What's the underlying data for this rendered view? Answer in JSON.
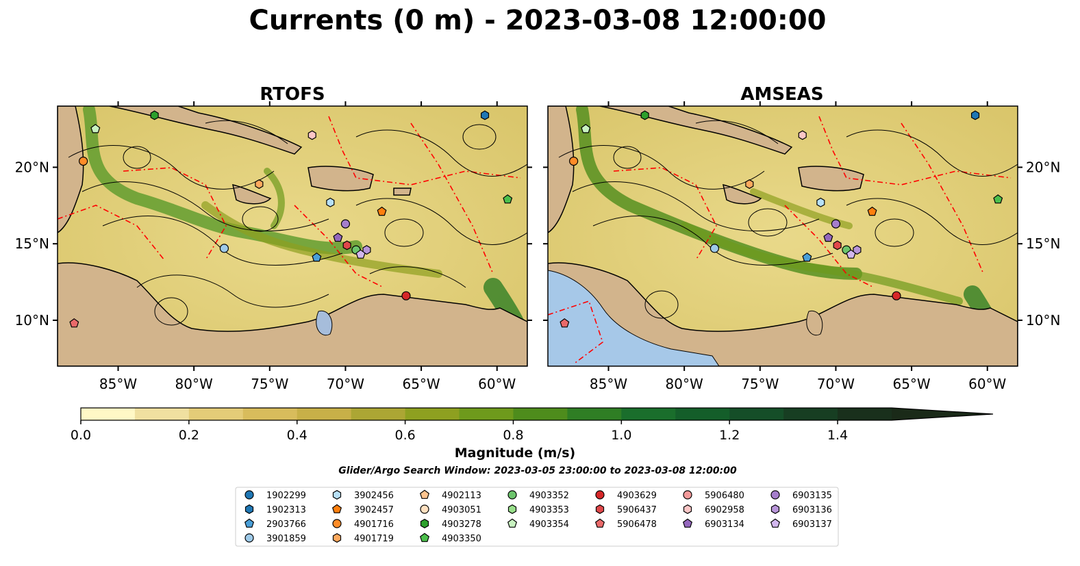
{
  "figure": {
    "title": "Currents (0 m) - 2023-03-08 12:00:00",
    "search_window": "Glider/Argo Search Window: 2023-03-05 23:00:00 to 2023-03-08 12:00:00"
  },
  "colors": {
    "land": "#d2b48c",
    "lakes": "#a6bddb",
    "pacific_nodata": "#a6c8e8",
    "eez_lines": "#ff0000",
    "streamlines": "#000000"
  },
  "chart_data": [
    {
      "type": "map",
      "title": "RTOFS",
      "xlabel": "",
      "ylabel": "",
      "xlim": [
        -89,
        -58
      ],
      "ylim": [
        7,
        24
      ],
      "x_ticks": [
        -85,
        -80,
        -75,
        -70,
        -65,
        -60
      ],
      "x_tick_labels": [
        "85°W",
        "80°W",
        "75°W",
        "70°W",
        "65°W",
        "60°W"
      ],
      "y_ticks": [
        10,
        15,
        20
      ],
      "y_tick_labels": [
        "10°N",
        "15°N",
        "20°N"
      ],
      "y_tick_side": "left",
      "pacific_shown_as": "land",
      "platforms": [
        {
          "id": "1902313",
          "lon": -60.8,
          "lat": 23.4
        },
        {
          "id": "4903278",
          "lon": -82.6,
          "lat": 23.4
        },
        {
          "id": "4903354",
          "lon": -86.5,
          "lat": 22.5
        },
        {
          "id": "6902958",
          "lon": -72.2,
          "lat": 22.1
        },
        {
          "id": "4901716",
          "lon": -87.3,
          "lat": 20.4
        },
        {
          "id": "4901719",
          "lon": -75.7,
          "lat": 18.9
        },
        {
          "id": "3902456",
          "lon": -71.0,
          "lat": 17.7
        },
        {
          "id": "4903350",
          "lon": -59.3,
          "lat": 17.9
        },
        {
          "id": "3902457",
          "lon": -67.6,
          "lat": 17.1
        },
        {
          "id": "6903135",
          "lon": -70.0,
          "lat": 16.3
        },
        {
          "id": "6903134",
          "lon": -70.5,
          "lat": 15.4
        },
        {
          "id": "3901859",
          "lon": -78.0,
          "lat": 14.7
        },
        {
          "id": "5906437",
          "lon": -69.9,
          "lat": 14.9
        },
        {
          "id": "4903352",
          "lon": -69.3,
          "lat": 14.6
        },
        {
          "id": "6903136",
          "lon": -68.6,
          "lat": 14.6
        },
        {
          "id": "6903137",
          "lon": -69.0,
          "lat": 14.3
        },
        {
          "id": "2903766",
          "lon": -71.9,
          "lat": 14.1
        },
        {
          "id": "4903629",
          "lon": -66.0,
          "lat": 11.6
        },
        {
          "id": "5906478",
          "lon": -87.9,
          "lat": 9.8
        }
      ]
    },
    {
      "type": "map",
      "title": "AMSEAS",
      "xlabel": "",
      "ylabel": "",
      "xlim": [
        -89,
        -58
      ],
      "ylim": [
        7,
        24
      ],
      "x_ticks": [
        -85,
        -80,
        -75,
        -70,
        -65,
        -60
      ],
      "x_tick_labels": [
        "85°W",
        "80°W",
        "75°W",
        "70°W",
        "65°W",
        "60°W"
      ],
      "y_ticks": [
        10,
        15,
        20
      ],
      "y_tick_labels": [
        "10°N",
        "15°N",
        "20°N"
      ],
      "y_tick_side": "right",
      "pacific_shown_as": "no data",
      "platforms": [
        {
          "id": "1902313",
          "lon": -60.8,
          "lat": 23.4
        },
        {
          "id": "4903278",
          "lon": -82.6,
          "lat": 23.4
        },
        {
          "id": "4903354",
          "lon": -86.5,
          "lat": 22.5
        },
        {
          "id": "6902958",
          "lon": -72.2,
          "lat": 22.1
        },
        {
          "id": "4901716",
          "lon": -87.3,
          "lat": 20.4
        },
        {
          "id": "4901719",
          "lon": -75.7,
          "lat": 18.9
        },
        {
          "id": "3902456",
          "lon": -71.0,
          "lat": 17.7
        },
        {
          "id": "4903350",
          "lon": -59.3,
          "lat": 17.9
        },
        {
          "id": "3902457",
          "lon": -67.6,
          "lat": 17.1
        },
        {
          "id": "6903135",
          "lon": -70.0,
          "lat": 16.3
        },
        {
          "id": "6903134",
          "lon": -70.5,
          "lat": 15.4
        },
        {
          "id": "3901859",
          "lon": -78.0,
          "lat": 14.7
        },
        {
          "id": "5906437",
          "lon": -69.9,
          "lat": 14.9
        },
        {
          "id": "4903352",
          "lon": -69.3,
          "lat": 14.6
        },
        {
          "id": "6903136",
          "lon": -68.6,
          "lat": 14.6
        },
        {
          "id": "6903137",
          "lon": -69.0,
          "lat": 14.3
        },
        {
          "id": "2903766",
          "lon": -71.9,
          "lat": 14.1
        },
        {
          "id": "4903629",
          "lon": -66.0,
          "lat": 11.6
        },
        {
          "id": "5906478",
          "lon": -87.9,
          "lat": 9.8
        }
      ]
    }
  ],
  "colorbar": {
    "label": "Magnitude (m/s)",
    "vmin": 0.0,
    "vmax": 1.5,
    "extend": "max",
    "ticks": [
      0.0,
      0.2,
      0.4,
      0.6,
      0.8,
      1.0,
      1.2,
      1.4
    ],
    "tick_labels": [
      "0.0",
      "0.2",
      "0.4",
      "0.6",
      "0.8",
      "1.0",
      "1.2",
      "1.4"
    ],
    "levels": [
      0.0,
      0.1,
      0.2,
      0.3,
      0.4,
      0.5,
      0.6,
      0.7,
      0.8,
      0.9,
      1.0,
      1.1,
      1.2,
      1.3,
      1.4,
      1.5
    ],
    "colors": [
      "#fff8c6",
      "#f0e0a0",
      "#e4cc78",
      "#d8bc5c",
      "#c8b048",
      "#aca634",
      "#8ea020",
      "#6e9a1c",
      "#4e8c1c",
      "#2f7e24",
      "#1a6e2c",
      "#145e2a",
      "#154e28",
      "#173e22",
      "#19301c"
    ],
    "extend_color": "#1a2a18"
  },
  "legend": {
    "columns": [
      [
        {
          "id": "1902299",
          "marker": "circle",
          "color": "#1f77b4"
        },
        {
          "id": "1902313",
          "marker": "hexagon",
          "color": "#1f77b4"
        },
        {
          "id": "2903766",
          "marker": "pentagon",
          "color": "#4a9fd8"
        },
        {
          "id": "3901859",
          "marker": "circle",
          "color": "#9ecae9"
        }
      ],
      [
        {
          "id": "3902456",
          "marker": "hexagon",
          "color": "#b7e0f7"
        },
        {
          "id": "3902457",
          "marker": "pentagon",
          "color": "#ff7f0e"
        },
        {
          "id": "4901716",
          "marker": "circle",
          "color": "#ff8c28"
        },
        {
          "id": "4901719",
          "marker": "hexagon",
          "color": "#ffa95e"
        }
      ],
      [
        {
          "id": "4902113",
          "marker": "pentagon",
          "color": "#ffc48f"
        },
        {
          "id": "4903051",
          "marker": "circle",
          "color": "#ffe0c0"
        },
        {
          "id": "4903278",
          "marker": "hexagon",
          "color": "#2ca02c"
        },
        {
          "id": "4903350",
          "marker": "pentagon",
          "color": "#4cbf4c"
        }
      ],
      [
        {
          "id": "4903352",
          "marker": "circle",
          "color": "#6cc46c"
        },
        {
          "id": "4903353",
          "marker": "hexagon",
          "color": "#98df8a"
        },
        {
          "id": "4903354",
          "marker": "pentagon",
          "color": "#c8f2c0"
        }
      ],
      [
        {
          "id": "4903629",
          "marker": "circle",
          "color": "#d62728"
        },
        {
          "id": "5906437",
          "marker": "hexagon",
          "color": "#e0484a"
        },
        {
          "id": "5906478",
          "marker": "pentagon",
          "color": "#ea6a6a"
        }
      ],
      [
        {
          "id": "5906480",
          "marker": "circle",
          "color": "#f39a9a"
        },
        {
          "id": "6902958",
          "marker": "hexagon",
          "color": "#fcc6c6"
        },
        {
          "id": "6903134",
          "marker": "pentagon",
          "color": "#9467bd"
        }
      ],
      [
        {
          "id": "6903135",
          "marker": "circle",
          "color": "#a57ecb"
        },
        {
          "id": "6903136",
          "marker": "hexagon",
          "color": "#b895d9"
        },
        {
          "id": "6903137",
          "marker": "pentagon",
          "color": "#d2b7ee"
        }
      ]
    ]
  }
}
